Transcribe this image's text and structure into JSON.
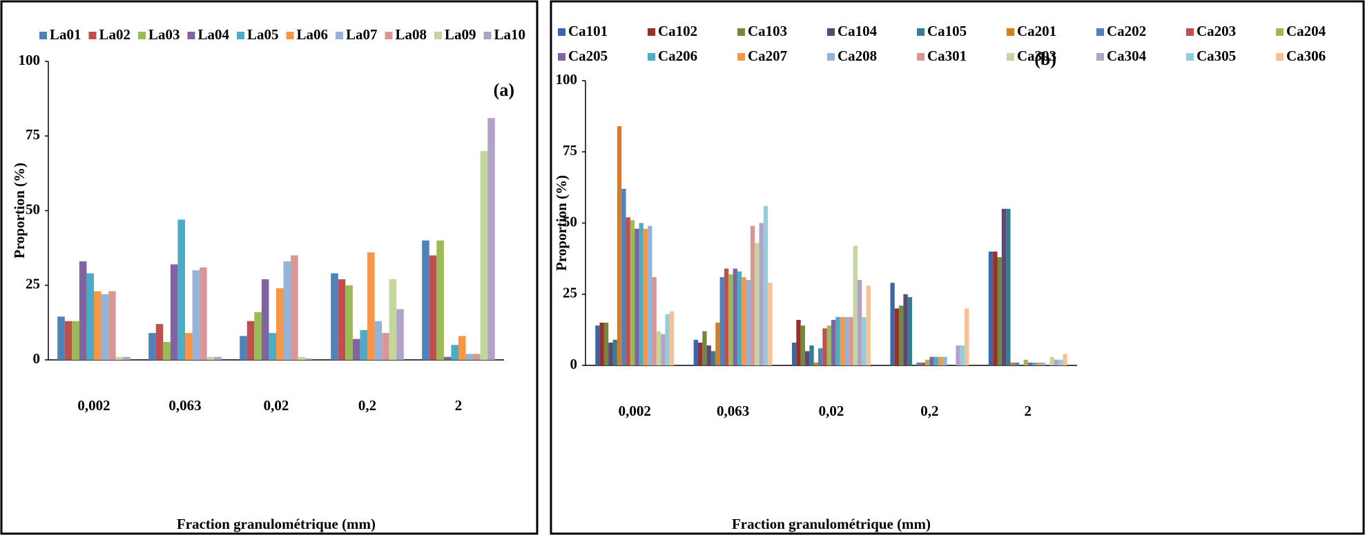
{
  "chart_data": [
    {
      "type": "bar",
      "annotation": "(a)",
      "y_label": "Proportion  (%)",
      "x_label": "Fraction granulométrique  (mm)",
      "categories": [
        "0,002",
        "0,063",
        "0,02",
        "0,2",
        "2"
      ],
      "ylim": [
        0,
        100
      ],
      "yticks": [
        0,
        25,
        50,
        75,
        100
      ],
      "series": [
        {
          "name": "La01",
          "color": "#4f81bd",
          "values": [
            14.5,
            9,
            8,
            29,
            40
          ]
        },
        {
          "name": "La02",
          "color": "#c0504d",
          "values": [
            13,
            12,
            13,
            27,
            35
          ]
        },
        {
          "name": "La03",
          "color": "#9bbb59",
          "values": [
            13,
            6,
            16,
            25,
            40
          ]
        },
        {
          "name": "La04",
          "color": "#8064a2",
          "values": [
            33,
            32,
            27,
            7,
            1
          ]
        },
        {
          "name": "La05",
          "color": "#4bacc6",
          "values": [
            29,
            47,
            9,
            10,
            5
          ]
        },
        {
          "name": "La06",
          "color": "#f79646",
          "values": [
            23,
            9,
            24,
            36,
            8
          ]
        },
        {
          "name": "La07",
          "color": "#95b3d7",
          "values": [
            22,
            30,
            33,
            13,
            2
          ]
        },
        {
          "name": "La08",
          "color": "#d99694",
          "values": [
            23,
            31,
            35,
            9,
            2
          ]
        },
        {
          "name": "La09",
          "color": "#c3d69b",
          "values": [
            1,
            1,
            1,
            27,
            70
          ]
        },
        {
          "name": "La10",
          "color": "#b3a2c7",
          "values": [
            1,
            1,
            0.5,
            17,
            81
          ]
        }
      ]
    },
    {
      "type": "bar",
      "annotation": "(b)",
      "y_label": "Proportion  (%)",
      "x_label": "Fraction granulométrique  (mm)",
      "categories": [
        "0,002",
        "0,063",
        "0,02",
        "0,2",
        "2"
      ],
      "ylim": [
        0,
        100
      ],
      "yticks": [
        0,
        25,
        50,
        75,
        100
      ],
      "series": [
        {
          "name": "Ca101",
          "color": "#3a67a8",
          "values": [
            14,
            9,
            8,
            29,
            40
          ]
        },
        {
          "name": "Ca102",
          "color": "#9b2d2a",
          "values": [
            15,
            8,
            16,
            20,
            40
          ]
        },
        {
          "name": "Ca103",
          "color": "#71893f",
          "values": [
            15,
            12,
            14,
            21,
            38
          ]
        },
        {
          "name": "Ca104",
          "color": "#5c4776",
          "values": [
            8,
            7,
            5,
            25,
            55
          ]
        },
        {
          "name": "Ca105",
          "color": "#357d91",
          "values": [
            9,
            5,
            7,
            24,
            55
          ]
        },
        {
          "name": "Ca201",
          "color": "#d37d2a",
          "values": [
            84,
            15,
            1,
            0,
            1
          ]
        },
        {
          "name": "Ca202",
          "color": "#4f81bd",
          "values": [
            62,
            31,
            6,
            1,
            1
          ]
        },
        {
          "name": "Ca203",
          "color": "#c0504d",
          "values": [
            52,
            34,
            13,
            1,
            0
          ]
        },
        {
          "name": "Ca204",
          "color": "#9bbb59",
          "values": [
            51,
            32,
            14,
            2,
            2
          ]
        },
        {
          "name": "Ca205",
          "color": "#8064a2",
          "values": [
            48,
            34,
            16,
            3,
            1
          ]
        },
        {
          "name": "Ca206",
          "color": "#4bacc6",
          "values": [
            50,
            33,
            17,
            3,
            1
          ]
        },
        {
          "name": "Ca207",
          "color": "#f79646",
          "values": [
            48,
            31,
            17,
            3,
            1
          ]
        },
        {
          "name": "Ca208",
          "color": "#95b3d7",
          "values": [
            49,
            30,
            17,
            3,
            1
          ]
        },
        {
          "name": "Ca301",
          "color": "#d99694",
          "values": [
            31,
            49,
            17,
            0,
            0
          ]
        },
        {
          "name": "Ca303",
          "color": "#c3d69b",
          "values": [
            12,
            43,
            42,
            0,
            3
          ]
        },
        {
          "name": "Ca304",
          "color": "#b3a2c7",
          "values": [
            11,
            50,
            30,
            7,
            2
          ]
        },
        {
          "name": "Ca305",
          "color": "#93cddd",
          "values": [
            18,
            56,
            17,
            7,
            2
          ]
        },
        {
          "name": "Ca306",
          "color": "#fac090",
          "values": [
            19,
            29,
            28,
            20,
            4
          ]
        }
      ]
    }
  ]
}
